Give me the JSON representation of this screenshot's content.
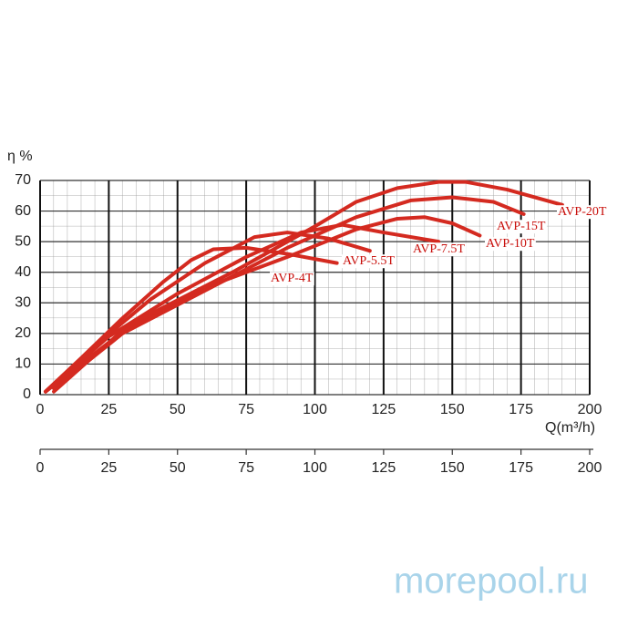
{
  "chart_data": {
    "type": "line",
    "y_label": "η %",
    "x_label": "Q(m³/h)",
    "watermark": "morepool.ru",
    "xlim": [
      0,
      200
    ],
    "xticks": [
      0,
      25,
      50,
      75,
      100,
      125,
      150,
      175,
      200
    ],
    "ylim": [
      0,
      70
    ],
    "yticks": [
      0,
      10,
      20,
      30,
      40,
      50,
      60,
      70
    ],
    "grid": true,
    "color": "#d42a20",
    "series": [
      {
        "name": "AVP-4T",
        "x": [
          2,
          15,
          30,
          45,
          55,
          63,
          75,
          90,
          108
        ],
        "values": [
          1,
          12,
          25,
          37,
          44,
          47.5,
          48,
          46,
          43
        ]
      },
      {
        "name": "AVP-5.5T",
        "x": [
          2,
          20,
          40,
          60,
          78,
          90,
          105,
          120
        ],
        "values": [
          1,
          16,
          31,
          43,
          51.5,
          53,
          51,
          47
        ]
      },
      {
        "name": "AVP-7.5T",
        "x": [
          2,
          25,
          50,
          75,
          95,
          110,
          125,
          145
        ],
        "values": [
          1,
          19,
          33,
          45,
          53,
          55.5,
          53,
          50
        ]
      },
      {
        "name": "AVP-10T",
        "x": [
          5,
          30,
          60,
          90,
          115,
          130,
          140,
          150,
          160
        ],
        "values": [
          1,
          21,
          35,
          45,
          54,
          57.5,
          58,
          56,
          52
        ]
      },
      {
        "name": "AVP-15T",
        "x": [
          5,
          30,
          60,
          90,
          115,
          135,
          150,
          165,
          176
        ],
        "values": [
          2,
          20,
          34,
          48,
          58,
          63.5,
          64.5,
          63,
          59
        ]
      },
      {
        "name": "AVP-20T",
        "x": [
          2,
          35,
          70,
          100,
          115,
          130,
          145,
          155,
          170,
          190
        ],
        "values": [
          1,
          24,
          40,
          55,
          63,
          67.5,
          69.5,
          69.5,
          67,
          62
        ]
      }
    ]
  }
}
